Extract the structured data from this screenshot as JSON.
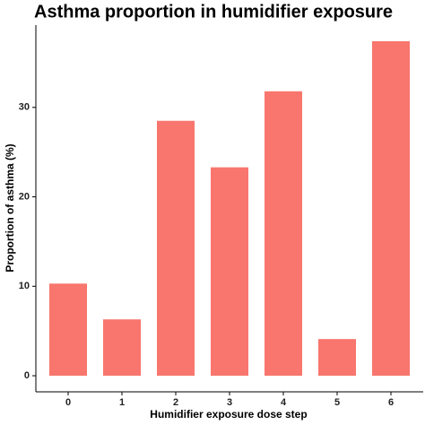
{
  "chart_data": {
    "type": "bar",
    "title": "Asthma proportion in humidifier exposure",
    "x_label": "Humidifier exposure dose step",
    "y_label": "Proportion of asthma (%)",
    "categories": [
      "0",
      "1",
      "2",
      "3",
      "4",
      "5",
      "6"
    ],
    "values": [
      10.3,
      6.3,
      28.5,
      23.3,
      31.8,
      4.1,
      37.4
    ],
    "color": "#F8766D",
    "ylim": [
      -1.8,
      39.2
    ],
    "yticks": [
      0,
      10,
      20,
      30
    ],
    "grid": false
  }
}
